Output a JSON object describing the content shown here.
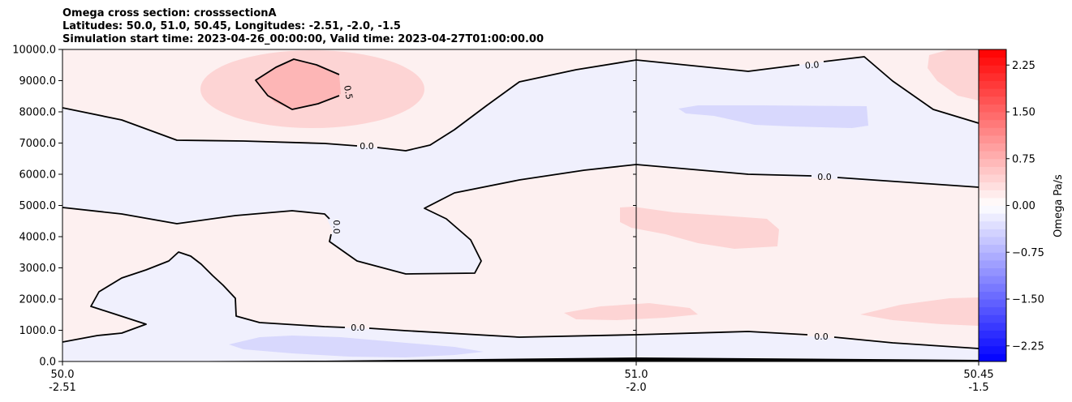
{
  "titles": [
    "Omega cross section: crosssectionA",
    "Latitudes: 50.0, 51.0, 50.45, Longitudes: -2.51, -2.0, -1.5",
    "Simulation start time: 2023-04-26_00:00:00, Valid time: 2023-04-27T01:00:00.00"
  ],
  "chart_data": {
    "type": "heatmap",
    "subtype": "filled contour cross section",
    "ylim": [
      0,
      10000
    ],
    "y_ticks": [
      "0.0",
      "1000.0",
      "2000.0",
      "3000.0",
      "4000.0",
      "5000.0",
      "6000.0",
      "7000.0",
      "8000.0",
      "9000.0",
      "10000.0"
    ],
    "x_ticks": [
      {
        "lat": "50.0",
        "lon": "-2.51"
      },
      {
        "lat": "51.0",
        "lon": "-2.0"
      },
      {
        "lat": "50.45",
        "lon": "-1.5"
      }
    ],
    "contour_lines": [
      "0.5",
      "0.0",
      "0.0",
      "0.0",
      "0.0",
      "0.0"
    ],
    "colorbar": {
      "label": "Omega Pa/s",
      "range": [
        -2.5,
        2.5
      ],
      "step": 0.125,
      "tick_labels": [
        "2.25",
        "1.50",
        "0.75",
        "0.00",
        "−0.75",
        "−1.50",
        "−2.25"
      ],
      "tick_values": [
        2.25,
        1.5,
        0.75,
        0.0,
        -0.75,
        -1.5,
        -2.25
      ]
    },
    "colors": {
      "max_red": "#ff0000",
      "max_blue": "#0000ff",
      "light_pink": "#fdf0f0",
      "light_lavender": "#f0f0fd"
    }
  }
}
